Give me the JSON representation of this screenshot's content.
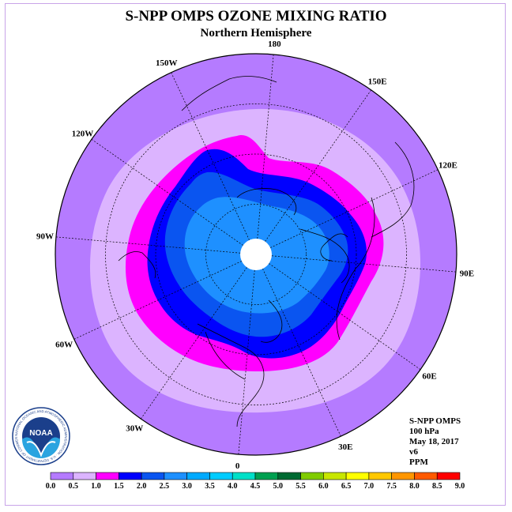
{
  "title": "S-NPP OMPS OZONE MIXING RATIO",
  "subtitle": "Northern Hemisphere",
  "longitude_labels": [
    {
      "text": "90E",
      "lon": 90
    },
    {
      "text": "60E",
      "lon": 60
    },
    {
      "text": "30E",
      "lon": 30
    },
    {
      "text": "0",
      "lon": 0
    },
    {
      "text": "30W",
      "lon": -30
    },
    {
      "text": "60W",
      "lon": -60
    },
    {
      "text": "90W",
      "lon": -90
    },
    {
      "text": "120W",
      "lon": -120
    },
    {
      "text": "150W",
      "lon": -150
    },
    {
      "text": "180",
      "lon": 180
    },
    {
      "text": "150E",
      "lon": 150
    },
    {
      "text": "120E",
      "lon": 120
    }
  ],
  "info": {
    "line1": "S-NPP OMPS",
    "line2": "100 hPa",
    "line3": "May 18, 2017",
    "line4": "v6",
    "line5": "PPM"
  },
  "logo": {
    "text": "NOAA",
    "ring_text": "NATIONAL OCEANIC AND ATMOSPHERIC ADMINISTRATION · U.S. DEPARTMENT OF COMMERCE"
  },
  "colorbar": {
    "ticks": [
      "0.0",
      "0.5",
      "1.0",
      "1.5",
      "2.0",
      "2.5",
      "3.0",
      "3.5",
      "4.0",
      "4.5",
      "5.0",
      "5.5",
      "6.0",
      "6.5",
      "7.0",
      "7.5",
      "8.0",
      "8.5",
      "9.0"
    ],
    "colors": [
      "#b57bff",
      "#dcb4ff",
      "#ff00ff",
      "#0000ff",
      "#0a55f0",
      "#1e90ff",
      "#00aaff",
      "#00ccff",
      "#00e0c8",
      "#00a050",
      "#006a32",
      "#80cc00",
      "#c8e600",
      "#ffff00",
      "#ffc800",
      "#ff9600",
      "#ff5a00",
      "#ff0000",
      "#b0004c",
      "#8c5a3c"
    ]
  },
  "field_colors": {
    "outer": "#b57bff",
    "ring_light": "#dcb4ff",
    "ring_magenta": "#ff00ff",
    "ring_blue": "#0000ff",
    "ring_mid": "#0a55f0",
    "inner": "#1e90ff",
    "pole_blank": "#ffffff"
  }
}
